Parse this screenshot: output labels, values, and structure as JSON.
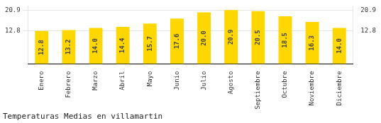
{
  "chart_data": {
    "type": "bar",
    "title": "Temperaturas Medias en villamartin",
    "categories": [
      "Enero",
      "Febrero",
      "Marzo",
      "Abril",
      "Mayo",
      "Junio",
      "Julio",
      "Agosto",
      "Septiembre",
      "Octubre",
      "Noviembre",
      "Diciembre"
    ],
    "values": [
      12.8,
      13.2,
      14.0,
      14.4,
      15.7,
      17.6,
      20.0,
      20.9,
      20.5,
      18.5,
      16.3,
      14.0
    ],
    "value_labels": [
      "12.8",
      "13.2",
      "14.0",
      "14.4",
      "15.7",
      "17.6",
      "20.0",
      "20.9",
      "20.5",
      "18.5",
      "16.3",
      "14.0"
    ],
    "color": "#FFD700",
    "ylim": [
      0,
      22.5
    ],
    "yticks": [
      12.8,
      20.9
    ],
    "y2lim": [
      0,
      22.5
    ],
    "y2ticks": [
      12.8,
      20.9
    ],
    "grid": true,
    "data_labels": true
  }
}
